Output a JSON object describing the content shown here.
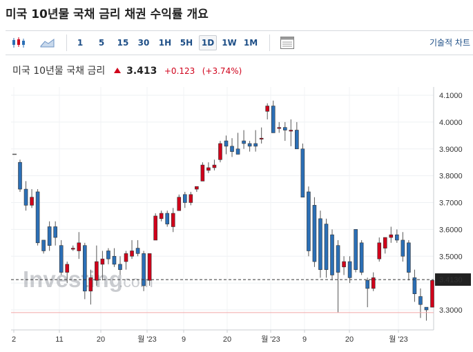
{
  "page": {
    "title": "미국 10년물 국채 금리  채권 수익률 개요"
  },
  "toolbar": {
    "timeframes": [
      "1",
      "5",
      "15",
      "30",
      "1H",
      "5H",
      "1D",
      "1W",
      "1M"
    ],
    "active_timeframe": "1D",
    "tech_chart_label": "기술적 차트"
  },
  "quote": {
    "name": "미국 10년물 국채 금리",
    "price": "3.413",
    "change": "+0.123",
    "change_pct": "(+3.74%)"
  },
  "watermark": {
    "brand": "Investing",
    "suffix": ".com"
  },
  "colors": {
    "up": "#d0021b",
    "down": "#2b6fb6",
    "accent": "#1e4f87",
    "ref_line": "#f2a6a6"
  },
  "chart_data": {
    "type": "candlestick",
    "ylim": [
      3.22,
      4.13
    ],
    "y_ticks": [
      "4.1000",
      "4.0000",
      "3.9000",
      "3.8000",
      "3.7000",
      "3.6000",
      "3.5000",
      "3.3000"
    ],
    "x_ticks": [
      "2",
      "11",
      "20",
      "월 '23",
      "9",
      "20",
      "월 '23",
      "9",
      "20",
      "월 '23"
    ],
    "current_value_label": "3.4130",
    "current_value": 3.413,
    "reference_line": 3.29,
    "orphan_mark": 3.88,
    "candles": [
      [
        3.85,
        3.86,
        3.74,
        3.75
      ],
      [
        3.75,
        3.78,
        3.67,
        3.69
      ],
      [
        3.69,
        3.75,
        3.68,
        3.72
      ],
      [
        3.74,
        3.75,
        3.54,
        3.55
      ],
      [
        3.56,
        3.56,
        3.51,
        3.52
      ],
      [
        3.61,
        3.63,
        3.52,
        3.54
      ],
      [
        3.61,
        3.63,
        3.54,
        3.57
      ],
      [
        3.54,
        3.56,
        3.43,
        3.44
      ],
      [
        3.44,
        3.48,
        3.4,
        3.47
      ],
      [
        3.53,
        3.54,
        3.52,
        3.53
      ],
      [
        3.52,
        3.59,
        3.49,
        3.55
      ],
      [
        3.54,
        3.55,
        3.34,
        3.37
      ],
      [
        3.37,
        3.45,
        3.32,
        3.42
      ],
      [
        3.41,
        3.54,
        3.39,
        3.48
      ],
      [
        3.47,
        3.52,
        3.41,
        3.49
      ],
      [
        3.52,
        3.53,
        3.47,
        3.49
      ],
      [
        3.5,
        3.53,
        3.46,
        3.47
      ],
      [
        3.47,
        3.5,
        3.43,
        3.45
      ],
      [
        3.48,
        3.52,
        3.45,
        3.51
      ],
      [
        3.5,
        3.56,
        3.49,
        3.52
      ],
      [
        3.53,
        3.56,
        3.5,
        3.51
      ],
      [
        3.51,
        3.52,
        3.37,
        3.39
      ],
      [
        3.41,
        3.51,
        3.39,
        3.51
      ],
      [
        3.56,
        3.66,
        3.56,
        3.65
      ],
      [
        3.64,
        3.67,
        3.63,
        3.66
      ],
      [
        3.66,
        3.67,
        3.61,
        3.62
      ],
      [
        3.61,
        3.68,
        3.59,
        3.66
      ],
      [
        3.67,
        3.73,
        3.67,
        3.72
      ],
      [
        3.73,
        3.74,
        3.68,
        3.7
      ],
      [
        3.7,
        3.74,
        3.69,
        3.73
      ],
      [
        3.75,
        3.76,
        3.74,
        3.76
      ],
      [
        3.78,
        3.85,
        3.78,
        3.84
      ],
      [
        3.82,
        3.85,
        3.81,
        3.83
      ],
      [
        3.83,
        3.86,
        3.82,
        3.84
      ],
      [
        3.86,
        3.93,
        3.85,
        3.92
      ],
      [
        3.93,
        3.95,
        3.88,
        3.91
      ],
      [
        3.91,
        3.94,
        3.87,
        3.89
      ],
      [
        3.9,
        3.96,
        3.88,
        3.88
      ],
      [
        3.93,
        3.97,
        3.9,
        3.92
      ],
      [
        3.92,
        3.93,
        3.89,
        3.91
      ],
      [
        3.92,
        3.97,
        3.89,
        3.91
      ],
      [
        3.94,
        3.98,
        3.92,
        3.94
      ],
      [
        4.04,
        4.07,
        4.01,
        4.06
      ],
      [
        4.06,
        4.08,
        3.96,
        3.96
      ],
      [
        3.98,
        4.0,
        3.96,
        3.98
      ],
      [
        3.98,
        4.0,
        3.93,
        3.97
      ],
      [
        3.97,
        4.01,
        3.91,
        3.97
      ],
      [
        3.97,
        4.0,
        3.9,
        3.9
      ],
      [
        3.9,
        3.92,
        3.72,
        3.72
      ],
      [
        3.74,
        3.76,
        3.5,
        3.52
      ],
      [
        3.69,
        3.72,
        3.46,
        3.48
      ],
      [
        3.64,
        3.67,
        3.42,
        3.45
      ],
      [
        3.62,
        3.64,
        3.42,
        3.45
      ],
      [
        3.58,
        3.6,
        3.41,
        3.43
      ],
      [
        3.54,
        3.56,
        3.29,
        3.44
      ],
      [
        3.46,
        3.5,
        3.43,
        3.48
      ],
      [
        3.48,
        3.5,
        3.4,
        3.42
      ],
      [
        3.6,
        3.6,
        3.44,
        3.45
      ],
      [
        3.55,
        3.56,
        3.43,
        3.44
      ],
      [
        3.41,
        3.42,
        3.31,
        3.38
      ],
      [
        3.38,
        3.44,
        3.37,
        3.42
      ],
      [
        3.49,
        3.57,
        3.48,
        3.55
      ],
      [
        3.53,
        3.57,
        3.51,
        3.57
      ],
      [
        3.57,
        3.61,
        3.55,
        3.58
      ],
      [
        3.58,
        3.6,
        3.55,
        3.56
      ],
      [
        3.56,
        3.59,
        3.48,
        3.5
      ],
      [
        3.55,
        3.56,
        3.41,
        3.44
      ],
      [
        3.42,
        3.45,
        3.33,
        3.36
      ],
      [
        3.35,
        3.38,
        3.27,
        3.32
      ],
      [
        3.31,
        3.31,
        3.26,
        3.3
      ],
      [
        3.31,
        3.41,
        3.31,
        3.41
      ]
    ]
  }
}
